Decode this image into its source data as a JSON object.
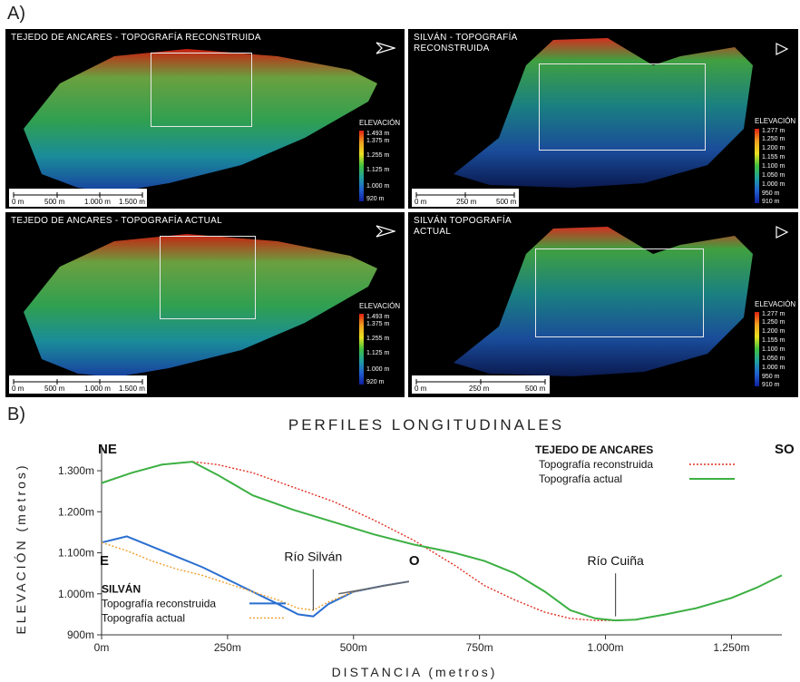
{
  "section_a": "A)",
  "section_b": "B)",
  "panels": [
    {
      "title": "TEJEDO DE ANCARES - TOPOGRAFÍA RECONSTRUIDA",
      "legend_title": "ELEVACIÓN",
      "legend_ticks": [
        "1.493 m",
        "1.375 m",
        "1.255 m",
        "1.125 m",
        "1.000 m",
        "920 m"
      ],
      "scale_labels": [
        "0 m",
        "500 m",
        "1.000 m",
        "1.500 m"
      ]
    },
    {
      "title": "SILVÁN - TOPOGRAFÍA RECONSTRUIDA",
      "legend_title": "ELEVACIÓN",
      "legend_ticks": [
        "1.277 m",
        "1.250 m",
        "1.200 m",
        "1.155 m",
        "1.100 m",
        "1.050 m",
        "1.000 m",
        "950 m",
        "910 m"
      ],
      "scale_labels": [
        "0 m",
        "250 m",
        "500 m"
      ]
    },
    {
      "title": "TEJEDO DE ANCARES - TOPOGRAFÍA ACTUAL",
      "legend_title": "ELEVACIÓN",
      "legend_ticks": [
        "1.493 m",
        "1.375 m",
        "1.255 m",
        "1.125 m",
        "1.000 m",
        "920 m"
      ],
      "scale_labels": [
        "0 m",
        "500 m",
        "1.000 m",
        "1.500 m"
      ]
    },
    {
      "title": "SILVÁN TOPOGRAFÍA ACTUAL",
      "legend_title": "ELEVACIÓN",
      "legend_ticks": [
        "1.277 m",
        "1.250 m",
        "1.200 m",
        "1.155 m",
        "1.100 m",
        "1.050 m",
        "1.000 m",
        "950 m",
        "910 m"
      ],
      "scale_labels": [
        "0 m",
        "250 m",
        "500 m"
      ]
    }
  ],
  "chart_data": {
    "type": "line",
    "title": "PERFILES LONGITUDINALES",
    "xlabel": "DISTANCIA (metros)",
    "ylabel": "ELEVACIÓN (metros)",
    "xlim": [
      0,
      1350
    ],
    "ylim": [
      900,
      1320
    ],
    "x_ticks": [
      0,
      250,
      500,
      750,
      1000,
      1250
    ],
    "x_tick_labels": [
      "0m",
      "250m",
      "500m",
      "750m",
      "1.000m",
      "1.250m"
    ],
    "y_ticks": [
      900,
      1000,
      1100,
      1200,
      1300
    ],
    "y_tick_labels": [
      "900m",
      "1.000m",
      "1.100m",
      "1.200m",
      "1.300m"
    ],
    "annotations": [
      "NE",
      "SO",
      "E",
      "O",
      "Río Silván",
      "Río Cuiña"
    ],
    "groups": [
      {
        "name": "TEJEDO DE ANCARES",
        "series": [
          {
            "name": "Topografía reconstruida",
            "color": "#e03020",
            "style": "dotted",
            "x": [
              0,
              60,
              120,
              180,
              230,
              300,
              380,
              460,
              540,
              620,
              700,
              760,
              820,
              880,
              930,
              980,
              1020,
              1060,
              1120,
              1180,
              1250,
              1300,
              1350
            ],
            "y": [
              1270,
              1295,
              1315,
              1322,
              1315,
              1295,
              1260,
              1225,
              1180,
              1130,
              1070,
              1020,
              985,
              955,
              940,
              935,
              935,
              937,
              950,
              965,
              990,
              1015,
              1045
            ]
          },
          {
            "name": "Topografía actual",
            "color": "#3cb043",
            "style": "solid",
            "x": [
              0,
              60,
              120,
              180,
              230,
              300,
              380,
              460,
              540,
              620,
              700,
              760,
              820,
              880,
              930,
              980,
              1020,
              1060,
              1120,
              1180,
              1250,
              1300,
              1350
            ],
            "y": [
              1270,
              1295,
              1315,
              1322,
              1290,
              1240,
              1205,
              1175,
              1145,
              1120,
              1100,
              1080,
              1050,
              1005,
              960,
              940,
              935,
              937,
              950,
              965,
              990,
              1015,
              1045
            ]
          }
        ]
      },
      {
        "name": "SILVÁN",
        "series": [
          {
            "name": "Topografía reconstruida",
            "color": "#2a6fd0",
            "style": "solid",
            "x": [
              0,
              50,
              100,
              150,
              200,
              250,
              300,
              350,
              390,
              420,
              450,
              500,
              560,
              610
            ],
            "y": [
              1125,
              1140,
              1115,
              1090,
              1065,
              1035,
              1005,
              975,
              950,
              945,
              975,
              1005,
              1020,
              1030
            ]
          },
          {
            "name": "Topografía actual",
            "color": "#f0a030",
            "style": "dotted",
            "x": [
              0,
              50,
              100,
              150,
              200,
              250,
              300,
              350,
              390,
              420,
              450,
              500,
              560,
              610
            ],
            "y": [
              1125,
              1105,
              1080,
              1060,
              1045,
              1025,
              1005,
              985,
              965,
              960,
              980,
              1005,
              1020,
              1030
            ]
          }
        ]
      }
    ]
  }
}
